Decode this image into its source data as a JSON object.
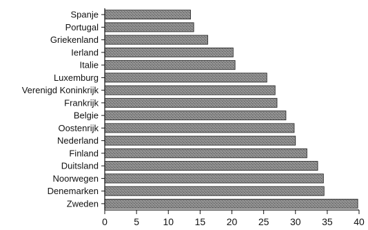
{
  "chart_data": {
    "type": "bar",
    "orientation": "horizontal",
    "categories": [
      "Spanje",
      "Portugal",
      "Griekenland",
      "Ierland",
      "Italie",
      "Luxemburg",
      "Verenigd Koninkrijk",
      "Frankrijk",
      "Belgie",
      "Oostenrijk",
      "Nederland",
      "Finland",
      "Duitsland",
      "Noorwegen",
      "Denemarken",
      "Zweden"
    ],
    "values": [
      13.5,
      14,
      16.2,
      20.2,
      20.5,
      25.5,
      26.8,
      27.1,
      28.5,
      29.8,
      30,
      31.8,
      33.5,
      34.4,
      34.5,
      39.8
    ],
    "title": "",
    "xlabel": "",
    "ylabel": "",
    "xlim": [
      0,
      40
    ],
    "xticks": [
      0,
      5,
      10,
      15,
      20,
      25,
      30,
      35,
      40
    ],
    "grid": false,
    "legend": "none",
    "bar_color": "#7d7d7d"
  }
}
